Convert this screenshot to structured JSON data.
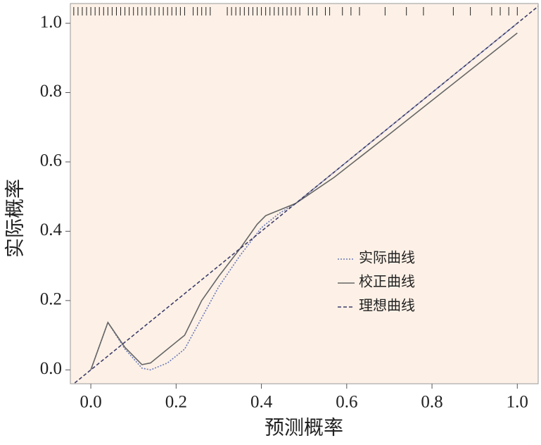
{
  "chart_data": {
    "type": "line",
    "xlabel": "预测概率",
    "ylabel": "实际概率",
    "xlim": [
      -0.048,
      1.049
    ],
    "ylim": [
      -0.04,
      1.057
    ],
    "xticks": [
      {
        "value": 0,
        "label": "0.0"
      },
      {
        "value": 0.2,
        "label": "0.2"
      },
      {
        "value": 0.4,
        "label": "0.4"
      },
      {
        "value": 0.6,
        "label": "0.6"
      },
      {
        "value": 0.8,
        "label": "0.8"
      },
      {
        "value": 1,
        "label": "1.0"
      }
    ],
    "yticks": [
      {
        "value": 0,
        "label": "0.0"
      },
      {
        "value": 0.2,
        "label": "0.2"
      },
      {
        "value": 0.4,
        "label": "0.4"
      },
      {
        "value": 0.6,
        "label": "0.6"
      },
      {
        "value": 0.8,
        "label": "0.8"
      },
      {
        "value": 1,
        "label": "1.0"
      }
    ],
    "background": "#fdf1e7",
    "rug": {
      "color": "#222222",
      "values": [
        -0.04,
        -0.03,
        -0.02,
        -0.01,
        0.0,
        0.01,
        0.02,
        0.03,
        0.04,
        0.05,
        0.06,
        0.07,
        0.08,
        0.09,
        0.1,
        0.11,
        0.12,
        0.13,
        0.14,
        0.15,
        0.16,
        0.17,
        0.18,
        0.19,
        0.2,
        0.21,
        0.22,
        0.24,
        0.25,
        0.26,
        0.27,
        0.28,
        0.32,
        0.33,
        0.34,
        0.35,
        0.36,
        0.37,
        0.38,
        0.39,
        0.4,
        0.41,
        0.42,
        0.43,
        0.44,
        0.45,
        0.46,
        0.47,
        0.48,
        0.49,
        0.51,
        0.52,
        0.53,
        0.55,
        0.56,
        0.59,
        0.61,
        0.63,
        0.69,
        0.74,
        0.78,
        0.85,
        0.89,
        0.94,
        0.96,
        0.98,
        1.0
      ]
    },
    "series": [
      {
        "name": "实际曲线",
        "color": "#6a78b8",
        "dash": "2,2",
        "x": [
          0,
          0.04,
          0.08,
          0.12,
          0.14,
          0.18,
          0.22,
          0.26,
          0.3,
          0.35,
          0.4,
          0.44,
          0.48,
          0.55,
          0.7,
          1.0
        ],
        "values": [
          0,
          0.137,
          0.06,
          0.005,
          0.0,
          0.02,
          0.06,
          0.15,
          0.24,
          0.33,
          0.41,
          0.45,
          0.48,
          0.55,
          0.7,
          1.0
        ]
      },
      {
        "name": "校正曲线",
        "color": "#666666",
        "dash": "none",
        "x": [
          0,
          0.04,
          0.08,
          0.12,
          0.14,
          0.18,
          0.22,
          0.26,
          0.3,
          0.35,
          0.39,
          0.41,
          0.44,
          0.48,
          0.57,
          0.7,
          1.0
        ],
        "values": [
          0,
          0.137,
          0.065,
          0.015,
          0.02,
          0.06,
          0.1,
          0.2,
          0.27,
          0.35,
          0.42,
          0.445,
          0.46,
          0.48,
          0.555,
          0.68,
          0.972
        ]
      },
      {
        "name": "理想曲线",
        "color": "#3c3c6a",
        "dash": "5,3",
        "x": [
          -0.048,
          1.049
        ],
        "values": [
          -0.048,
          1.049
        ]
      }
    ]
  }
}
